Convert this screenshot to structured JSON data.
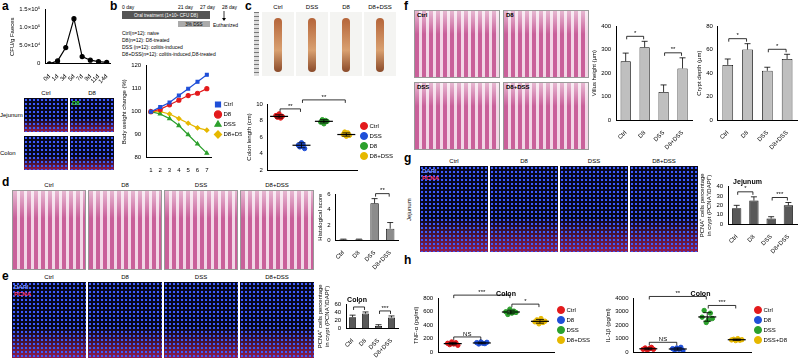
{
  "figure": {
    "panel_letters": [
      "a",
      "b",
      "c",
      "d",
      "e",
      "f",
      "g",
      "h"
    ],
    "images": [
      {
        "columns": [
          "Ctrl",
          "D8"
        ],
        "rows": [
          "Jejunum",
          "Colon"
        ],
        "stain_labels": [
          "D8"
        ]
      },
      {
        "columns": [
          "Ctrl",
          "DSS",
          "D8",
          "D8+DSS"
        ]
      },
      {
        "columns": [
          "Ctrl",
          "D8",
          "DSS",
          "D8+DSS"
        ]
      },
      {
        "columns": [
          "Ctrl",
          "D8",
          "DSS",
          "D8+DSS"
        ],
        "stain_labels": [
          "DAPI",
          "PCNA"
        ]
      },
      {
        "columns": [
          "Ctrl",
          "D8",
          "DSS",
          "D8+DSS"
        ]
      },
      {
        "columns": [
          "Ctrl",
          "D8",
          "DSS",
          "D8+DSS"
        ],
        "rows": [
          "Jejunum"
        ],
        "stain_labels": [
          "DAPI",
          "PCNA"
        ]
      }
    ],
    "timeline": {
      "days": [
        "0 day",
        "21 day",
        "27 day",
        "28 day"
      ],
      "treatment": "Oral treatment (1×10⁹ CFU D8)",
      "dss": "3% DSS",
      "end": "Euthanized",
      "groups": [
        "Ctrl(n=12): naive",
        "D8(n=12): D8-treated",
        "DSS (n=12): colitis-induced",
        "D8+DSS(n=12): colitis-induced,D8-treated"
      ]
    }
  },
  "chart_data": [
    {
      "type": "line",
      "categories": [
        "0d",
        "1d",
        "3d",
        "5d",
        "7d",
        "9d",
        "11d",
        "14d"
      ],
      "values": [
        0,
        8000,
        45000,
        125000,
        20000,
        10000,
        6000,
        4000
      ],
      "color": "#000000",
      "marker": "circle",
      "y_label": "CFU/g Faeces",
      "ylim": [
        0,
        150000
      ],
      "yticks": [
        0,
        {
          "value": 50000,
          "label": "5.0×10⁴"
        },
        {
          "value": 100000,
          "label": "1.0×10⁵"
        },
        {
          "value": 150000,
          "label": "1.5×10⁵"
        }
      ],
      "grid": false
    },
    {
      "type": "line",
      "categories": [
        "1",
        "2",
        "3",
        "4",
        "5",
        "6",
        "7"
      ],
      "y_label": "Body weight change (%)",
      "ylim": [
        80,
        120
      ],
      "yticks": [
        80,
        90,
        100,
        110,
        120
      ],
      "grid": false,
      "legend": "right",
      "series": [
        {
          "name": "Ctrl",
          "color": "#1f4fd8",
          "marker": "square",
          "values": [
            100,
            102,
            104,
            107,
            110,
            113,
            116
          ]
        },
        {
          "name": "D8",
          "color": "#e31a1c",
          "marker": "circle",
          "values": [
            100,
            101,
            103,
            105,
            107,
            108,
            110
          ]
        },
        {
          "name": "DSS",
          "color": "#2ca02c",
          "marker": "triangle",
          "values": [
            100,
            99,
            97,
            94,
            90,
            86,
            82
          ]
        },
        {
          "name": "D8+DSS",
          "color": "#e6b800",
          "marker": "diamond",
          "values": [
            100,
            100,
            99,
            97,
            95,
            93,
            92
          ]
        }
      ]
    },
    {
      "type": "scatter",
      "y_label": "Colon length (cm)",
      "ylim": [
        2,
        10
      ],
      "yticks": [
        2,
        4,
        6,
        8,
        10
      ],
      "grid": false,
      "legend": "right",
      "tick_labels": "y",
      "series": [
        {
          "name": "Ctrl",
          "color": "#e31a1c",
          "values": [
            8.6,
            8.4,
            8.8,
            8.3,
            8.5
          ],
          "mean": 8.5,
          "error": 0.2
        },
        {
          "name": "DSS",
          "color": "#1f4fd8",
          "values": [
            5.0,
            4.8,
            5.3,
            5.1,
            4.6
          ],
          "mean": 5.0,
          "error": 0.3
        },
        {
          "name": "D8",
          "color": "#2ca02c",
          "values": [
            7.8,
            8.1,
            7.6,
            8.0,
            7.9
          ],
          "mean": 7.9,
          "error": 0.2
        },
        {
          "name": "D8+DSS",
          "color": "#e6b800",
          "values": [
            6.3,
            6.6,
            6.1,
            6.5,
            6.2
          ],
          "mean": 6.3,
          "error": 0.2
        }
      ],
      "annotations": [
        {
          "text": "**",
          "from": "Ctrl",
          "to": "DSS"
        },
        {
          "text": "**",
          "from": "DSS",
          "to": "D8+DSS"
        }
      ]
    },
    {
      "type": "bar",
      "categories": [
        "Ctrl",
        "D8",
        "DSS",
        "D8+DSS"
      ],
      "values": [
        0.1,
        0.1,
        4.8,
        1.5
      ],
      "errors": [
        0.05,
        0.05,
        0.6,
        0.8
      ],
      "color": "#8c8c8c",
      "y_label": "Histological score",
      "ylim": [
        0,
        6
      ],
      "yticks": [
        0,
        2,
        4,
        6
      ],
      "grid": false,
      "annotations": [
        {
          "text": "**",
          "from": "DSS",
          "to": "D8+DSS"
        }
      ]
    },
    {
      "type": "bar",
      "title": "Colon",
      "categories": [
        "Ctrl",
        "D8",
        "DSS",
        "D8+DSS"
      ],
      "values": [
        28,
        37,
        6,
        27
      ],
      "errors": [
        5,
        4,
        3,
        4
      ],
      "color": "#595959",
      "y_label": [
        "PCNA⁺ cells percentage",
        "in crypt (PCNA⁺/DAPI⁺)"
      ],
      "ylim": [
        0,
        60
      ],
      "yticks": [
        0,
        20,
        40,
        60
      ],
      "grid": false,
      "annotations": [
        {
          "text": "*",
          "from": "Ctrl",
          "to": "D8"
        },
        {
          "text": "***",
          "from": "DSS",
          "to": "D8+DSS"
        }
      ]
    },
    {
      "type": "bar",
      "categories": [
        "Ctrl",
        "D8",
        "DSS",
        "D8+DSS"
      ],
      "values": [
        250,
        310,
        120,
        220
      ],
      "errors": [
        35,
        25,
        30,
        45
      ],
      "color": "#bfbfbf",
      "y_label": "Villus height (μm)",
      "ylim": [
        0,
        400
      ],
      "yticks": [
        0,
        100,
        200,
        300,
        400
      ],
      "grid": false,
      "annotations": [
        {
          "text": "*",
          "from": "Ctrl",
          "to": "D8"
        },
        {
          "text": "**",
          "from": "DSS",
          "to": "D8+DSS"
        }
      ]
    },
    {
      "type": "bar",
      "categories": [
        "Ctrl",
        "D8",
        "DSS",
        "D8+DSS"
      ],
      "values": [
        47,
        60,
        42,
        52
      ],
      "errors": [
        5,
        5,
        3,
        4
      ],
      "color": "#bfbfbf",
      "y_label": "Crypt depth (μm)",
      "ylim": [
        0,
        80
      ],
      "yticks": [
        0,
        20,
        40,
        60,
        80
      ],
      "grid": false,
      "annotations": [
        {
          "text": "*",
          "from": "Ctrl",
          "to": "D8"
        },
        {
          "text": "*",
          "from": "DSS",
          "to": "D8+DSS"
        }
      ]
    },
    {
      "type": "bar",
      "title": "Jejunum",
      "categories": [
        "Ctrl",
        "D8",
        "DSS",
        "D8+DSS"
      ],
      "values": [
        17,
        25,
        6,
        20
      ],
      "errors": [
        3,
        4,
        2,
        3
      ],
      "color": "#595959",
      "y_label": [
        "PCNA⁺ cells percentage",
        "in crypt (PCNA⁺/DAPI⁺)"
      ],
      "ylim": [
        0,
        40
      ],
      "yticks": [
        0,
        10,
        20,
        30,
        40
      ],
      "grid": false,
      "annotations": [
        {
          "text": "*",
          "from": "Ctrl",
          "to": "D8"
        },
        {
          "text": "***",
          "from": "DSS",
          "to": "D8+DSS"
        }
      ]
    },
    {
      "type": "scatter",
      "title": "Colon",
      "y_label": "TNF-α (pg/ml)",
      "ylim": [
        0,
        800
      ],
      "yticks": [
        0,
        200,
        400,
        600,
        800
      ],
      "grid": false,
      "legend": "right",
      "tick_labels": "y",
      "series": [
        {
          "name": "Ctrl",
          "color": "#e31a1c",
          "values": [
            130,
            110,
            150,
            120,
            140,
            100
          ],
          "mean": 125,
          "error": 18
        },
        {
          "name": "D8",
          "color": "#1f4fd8",
          "values": [
            140,
            120,
            150,
            130,
            125,
            145
          ],
          "mean": 135,
          "error": 12
        },
        {
          "name": "DSS",
          "color": "#2ca02c",
          "values": [
            600,
            560,
            640,
            580,
            610,
            590
          ],
          "mean": 597,
          "error": 27
        },
        {
          "name": "D8+DSS",
          "color": "#e6b800",
          "values": [
            450,
            480,
            420,
            500,
            440,
            460
          ],
          "mean": 458,
          "error": 28
        }
      ],
      "annotations": [
        {
          "text": "NS",
          "from": "Ctrl",
          "to": "D8"
        },
        {
          "text": "***",
          "from": "Ctrl",
          "to": "DSS"
        },
        {
          "text": "*",
          "from": "DSS",
          "to": "D8+DSS"
        }
      ]
    },
    {
      "type": "scatter",
      "title": "Colon",
      "y_label": "IL-1β (pg/ml)",
      "ylim": [
        0,
        4000
      ],
      "yticks": [
        0,
        1000,
        2000,
        3000,
        4000
      ],
      "grid": false,
      "legend": "right",
      "tick_labels": "y",
      "series": [
        {
          "name": "Ctrl",
          "color": "#e31a1c",
          "values": [
            200,
            300,
            150,
            250,
            350,
            200
          ],
          "mean": 242,
          "error": 70
        },
        {
          "name": "D8",
          "color": "#1f4fd8",
          "values": [
            250,
            150,
            300,
            200,
            350,
            100
          ],
          "mean": 225,
          "error": 90
        },
        {
          "name": "DSS",
          "color": "#2ca02c",
          "values": [
            2600,
            3100,
            2200,
            2400,
            2900,
            2500
          ],
          "mean": 2617,
          "error": 320
        },
        {
          "name": "DSS+D8",
          "color": "#e6b800",
          "values": [
            900,
            950,
            850,
            1000,
            880,
            920
          ],
          "mean": 917,
          "error": 52
        }
      ],
      "annotations": [
        {
          "text": "NS",
          "from": "Ctrl",
          "to": "D8"
        },
        {
          "text": "**",
          "from": "Ctrl",
          "to": "DSS"
        },
        {
          "text": "***",
          "from": "DSS",
          "to": "DSS+D8"
        }
      ]
    }
  ]
}
